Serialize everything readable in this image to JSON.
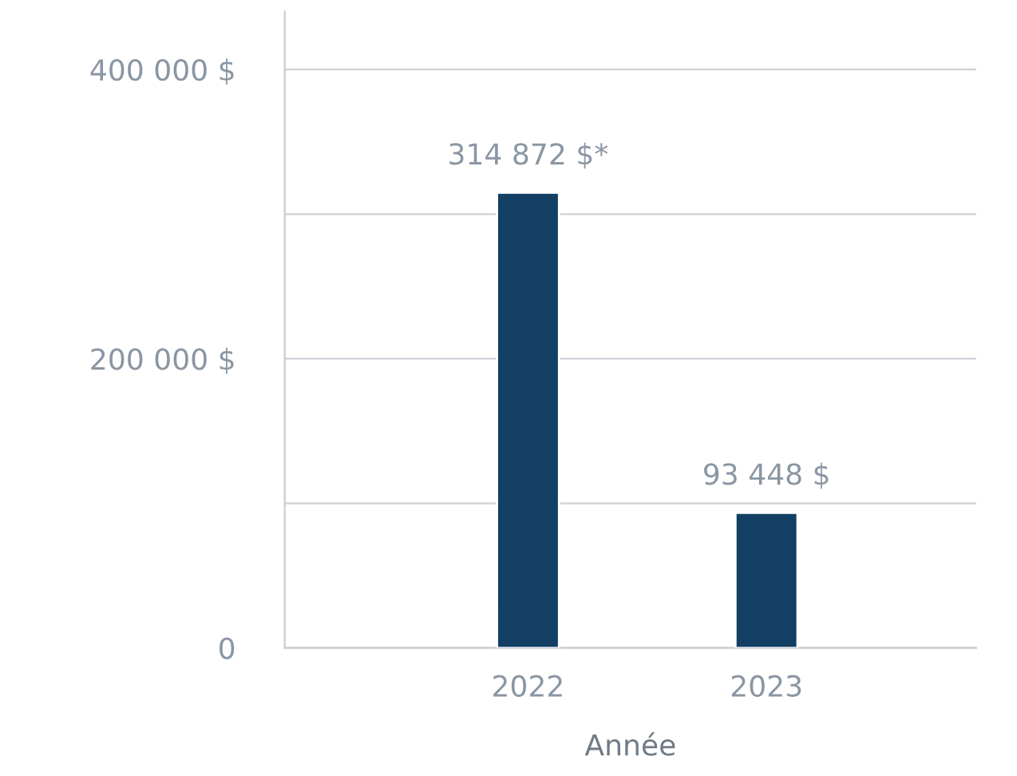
{
  "chart_data": {
    "type": "bar",
    "xlabel": "Année",
    "categories": [
      "2022",
      "2023"
    ],
    "values": [
      314872,
      93448
    ],
    "value_labels": [
      "314 872 $*",
      "93 448 $"
    ],
    "color": "#123f63",
    "ylim": [
      0,
      440000
    ],
    "yticks": [
      {
        "value": 0,
        "label": "0"
      },
      {
        "value": 100000,
        "label": null
      },
      {
        "value": 200000,
        "label": "200 000 $"
      },
      {
        "value": 300000,
        "label": null
      },
      {
        "value": 400000,
        "label": "400 000 $"
      }
    ],
    "grid": "y"
  }
}
